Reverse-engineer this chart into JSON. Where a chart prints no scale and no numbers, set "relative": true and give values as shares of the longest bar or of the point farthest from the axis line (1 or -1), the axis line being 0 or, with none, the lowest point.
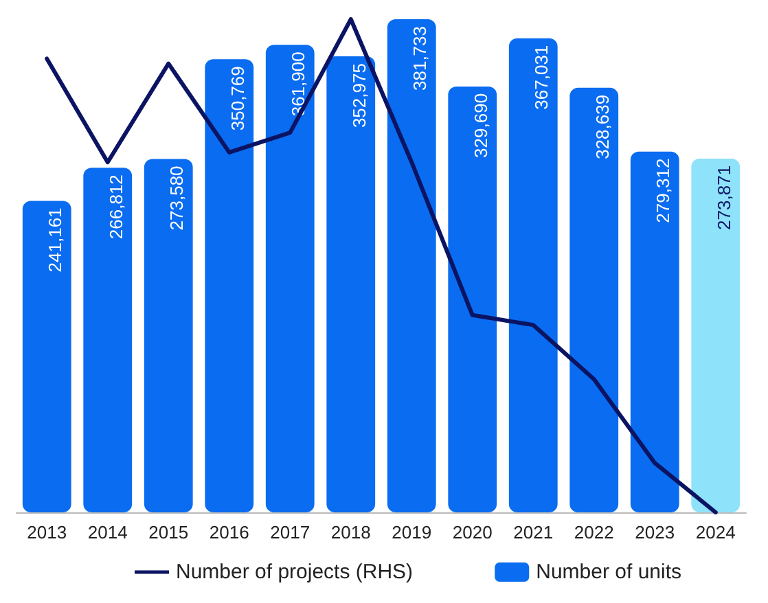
{
  "chart_data": [
    {
      "type": "bar",
      "categories": [
        "2013",
        "2014",
        "2015",
        "2016",
        "2017",
        "2018",
        "2019",
        "2020",
        "2021",
        "2022",
        "2023",
        "2024"
      ],
      "series": [
        {
          "name": "Number of units",
          "color": "#0a6cf0",
          "colors": [
            "#0a6cf0",
            "#0a6cf0",
            "#0a6cf0",
            "#0a6cf0",
            "#0a6cf0",
            "#0a6cf0",
            "#0a6cf0",
            "#0a6cf0",
            "#0a6cf0",
            "#0a6cf0",
            "#0a6cf0",
            "#8ee2fa"
          ],
          "values": [
            241161,
            266812,
            273580,
            350769,
            361900,
            352975,
            381733,
            329690,
            367031,
            328639,
            279312,
            273871
          ],
          "value_labels": [
            "241,161",
            "266,812",
            "273,580",
            "350,769",
            "361,900",
            "352,975",
            "381,733",
            "329,690",
            "367,031",
            "328,639",
            "279,312",
            "273,871"
          ]
        }
      ],
      "legend": "bottom right",
      "grid": false,
      "tick_labels": "x"
    },
    {
      "type": "line",
      "categories": [
        "2013",
        "2014",
        "2015",
        "2016",
        "2017",
        "2018",
        "2019",
        "2020",
        "2021",
        "2022",
        "2023",
        "2024"
      ],
      "series": [
        {
          "name": "Number of projects (RHS)",
          "color": "#0b1463",
          "values": [
            0.92,
            0.71,
            0.91,
            0.73,
            0.77,
            1,
            0.71,
            0.4,
            0.38,
            0.27,
            0.1,
            0
          ]
        }
      ],
      "relative": true,
      "legend": "bottom left",
      "grid": false,
      "marker": "none",
      "tick_labels": false
    }
  ]
}
